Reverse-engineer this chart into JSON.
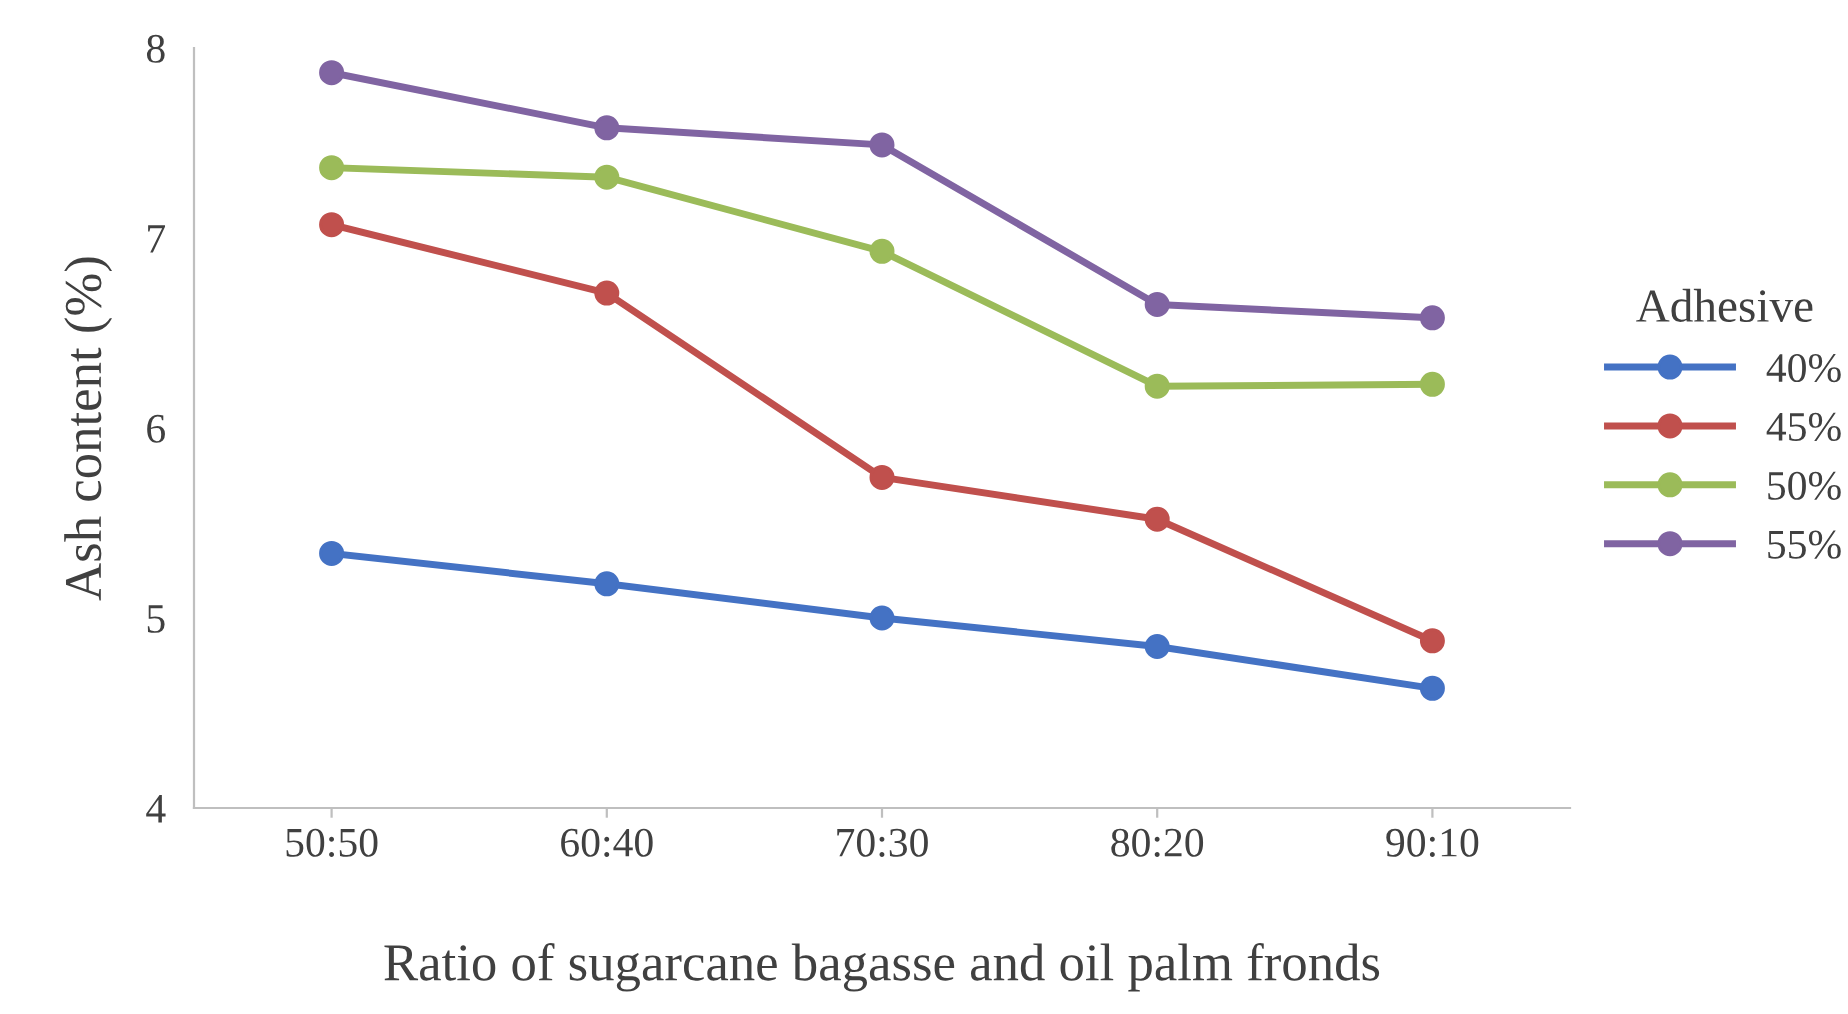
{
  "chart_data": {
    "type": "line",
    "xlabel": "Ratio of sugarcane bagasse and oil palm fronds",
    "ylabel": "Ash content (%)",
    "legend_title": "Adhesive",
    "legend": "right",
    "marker": "circle",
    "line_style": "solid",
    "grid": false,
    "categories": [
      "50:50",
      "60:40",
      "70:30",
      "80:20",
      "90:10"
    ],
    "ylim": [
      4,
      8
    ],
    "yticks": [
      4,
      5,
      6,
      7,
      8
    ],
    "series": [
      {
        "name": "40%",
        "color": "#4472c4",
        "values": [
          5.34,
          5.18,
          5.0,
          4.85,
          4.63
        ]
      },
      {
        "name": "45%",
        "color": "#c0504d",
        "values": [
          7.07,
          6.71,
          5.74,
          5.52,
          4.88
        ]
      },
      {
        "name": "50%",
        "color": "#9bbb59",
        "values": [
          7.37,
          7.32,
          6.93,
          6.22,
          6.23
        ]
      },
      {
        "name": "55%",
        "color": "#8064a2",
        "values": [
          7.87,
          7.58,
          7.49,
          6.65,
          6.58
        ]
      }
    ]
  }
}
